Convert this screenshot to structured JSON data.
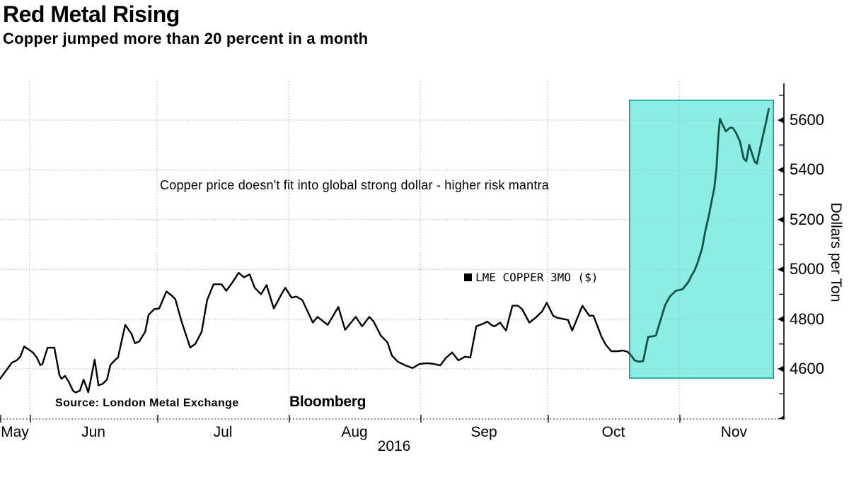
{
  "header": {
    "title": "Red Metal Rising",
    "subtitle": "Copper jumped more than 20 percent in a month"
  },
  "annotation": "Copper price doesn't fit into global strong dollar - higher risk mantra",
  "legend": {
    "marker": "black-square",
    "label": "LME COPPER 3MO ($)"
  },
  "footer": {
    "source": "Source:  London Metal Exchange",
    "brand": "Bloomberg"
  },
  "chart_data": {
    "type": "line",
    "title": "Red Metal Rising",
    "subtitle": "Copper jumped more than 20 percent in a month",
    "x_axis": {
      "start_date": "2016-05-25",
      "unit": "days-since-start",
      "year_label": "2016",
      "month_grid_days": [
        7,
        37,
        68,
        99,
        129,
        160
      ],
      "month_labels": [
        {
          "label": "May",
          "center_day": 3.5
        },
        {
          "label": "Jun",
          "center_day": 22.0
        },
        {
          "label": "Jul",
          "center_day": 52.5
        },
        {
          "label": "Aug",
          "center_day": 83.5
        },
        {
          "label": "Sep",
          "center_day": 114.0
        },
        {
          "label": "Oct",
          "center_day": 144.5
        },
        {
          "label": "Nov",
          "center_day": 172.9
        }
      ]
    },
    "y_axis": {
      "label": "Dollars per Ton",
      "ticks": [
        4600,
        4800,
        5000,
        5200,
        5400,
        5600
      ],
      "minor_ticks": [
        4500,
        4700,
        4900,
        5100,
        5300,
        5500,
        5700
      ],
      "range": [
        4390,
        5755
      ]
    },
    "grid_color": "#a9a9a9",
    "highlight": {
      "day_start": 148.3,
      "day_end": 182.2,
      "value_min": 4563,
      "value_max": 5680,
      "fill": "#63e6d8",
      "fill_opacity": 0.72,
      "border": "#0aa396"
    },
    "series": [
      {
        "name": "LME COPPER 3MO ($)",
        "color": "#000000",
        "highlight_color": "#11564b",
        "points": [
          [
            0,
            4560
          ],
          [
            1.3,
            4590
          ],
          [
            2.8,
            4625
          ],
          [
            4,
            4635
          ],
          [
            4.8,
            4650
          ],
          [
            5.7,
            4690
          ],
          [
            7,
            4675
          ],
          [
            7.8,
            4665
          ],
          [
            8.7,
            4645
          ],
          [
            9.5,
            4615
          ],
          [
            10,
            4620
          ],
          [
            11.2,
            4685
          ],
          [
            12.8,
            4685
          ],
          [
            14,
            4575
          ],
          [
            14.5,
            4560
          ],
          [
            15.3,
            4572
          ],
          [
            16.2,
            4548
          ],
          [
            17.2,
            4512
          ],
          [
            17.8,
            4505
          ],
          [
            18.8,
            4512
          ],
          [
            19.7,
            4557
          ],
          [
            20.8,
            4506
          ],
          [
            22.3,
            4637
          ],
          [
            23.2,
            4534
          ],
          [
            24.2,
            4540
          ],
          [
            25.2,
            4557
          ],
          [
            26,
            4615
          ],
          [
            26.5,
            4625
          ],
          [
            27.2,
            4637
          ],
          [
            27.8,
            4646
          ],
          [
            29.5,
            4777
          ],
          [
            31,
            4740
          ],
          [
            31.8,
            4703
          ],
          [
            32.8,
            4710
          ],
          [
            34.2,
            4749
          ],
          [
            35,
            4817
          ],
          [
            36.3,
            4840
          ],
          [
            37.5,
            4843
          ],
          [
            39.2,
            4911
          ],
          [
            40.5,
            4894
          ],
          [
            41.3,
            4880
          ],
          [
            42.8,
            4789
          ],
          [
            44.8,
            4686
          ],
          [
            46,
            4700
          ],
          [
            47.5,
            4749
          ],
          [
            48.8,
            4877
          ],
          [
            50.3,
            4940
          ],
          [
            52.2,
            4940
          ],
          [
            53.3,
            4914
          ],
          [
            54.7,
            4946
          ],
          [
            56.2,
            4986
          ],
          [
            57.5,
            4968
          ],
          [
            58.8,
            4980
          ],
          [
            60,
            4926
          ],
          [
            61.5,
            4900
          ],
          [
            62.8,
            4937
          ],
          [
            64.5,
            4843
          ],
          [
            66.3,
            4900
          ],
          [
            67.2,
            4926
          ],
          [
            68.7,
            4886
          ],
          [
            69.8,
            4891
          ],
          [
            71.2,
            4877
          ],
          [
            73.7,
            4786
          ],
          [
            74.8,
            4809
          ],
          [
            77.2,
            4777
          ],
          [
            79.7,
            4849
          ],
          [
            81.3,
            4757
          ],
          [
            83.8,
            4809
          ],
          [
            85.3,
            4771
          ],
          [
            87,
            4809
          ],
          [
            88,
            4791
          ],
          [
            89.7,
            4734
          ],
          [
            91.3,
            4706
          ],
          [
            92.3,
            4654
          ],
          [
            93.7,
            4629
          ],
          [
            95.5,
            4614
          ],
          [
            97.2,
            4603
          ],
          [
            98.8,
            4620
          ],
          [
            100.7,
            4623
          ],
          [
            102.2,
            4620
          ],
          [
            103.7,
            4614
          ],
          [
            105,
            4643
          ],
          [
            106.5,
            4666
          ],
          [
            108,
            4634
          ],
          [
            109.5,
            4649
          ],
          [
            110.8,
            4646
          ],
          [
            112.2,
            4771
          ],
          [
            114,
            4783
          ],
          [
            114.8,
            4790
          ],
          [
            115.7,
            4777
          ],
          [
            116.5,
            4771
          ],
          [
            117.8,
            4786
          ],
          [
            119.2,
            4754
          ],
          [
            120.7,
            4854
          ],
          [
            122,
            4854
          ],
          [
            123,
            4840
          ],
          [
            124.7,
            4786
          ],
          [
            126.2,
            4806
          ],
          [
            127.7,
            4831
          ],
          [
            128.8,
            4866
          ],
          [
            130.3,
            4814
          ],
          [
            131.2,
            4806
          ],
          [
            132.8,
            4800
          ],
          [
            133.8,
            4797
          ],
          [
            134.8,
            4754
          ],
          [
            137.2,
            4854
          ],
          [
            138.8,
            4814
          ],
          [
            139.8,
            4814
          ],
          [
            141.7,
            4729
          ],
          [
            142.7,
            4697
          ],
          [
            144,
            4671
          ],
          [
            145.5,
            4671
          ],
          [
            146.7,
            4674
          ],
          [
            147.8,
            4669
          ],
          [
            148.7,
            4654
          ],
          [
            149.5,
            4634
          ],
          [
            150.5,
            4629
          ],
          [
            151.5,
            4631
          ],
          [
            152.7,
            4729
          ],
          [
            153.8,
            4731
          ],
          [
            154.5,
            4734
          ],
          [
            156.7,
            4857
          ],
          [
            157.8,
            4891
          ],
          [
            159.2,
            4914
          ],
          [
            160.8,
            4920
          ],
          [
            162.2,
            4950
          ],
          [
            162.9,
            4975
          ],
          [
            163.6,
            4995
          ],
          [
            164.3,
            5025
          ],
          [
            165.4,
            5085
          ],
          [
            166.1,
            5150
          ],
          [
            166.9,
            5210
          ],
          [
            167.6,
            5270
          ],
          [
            168.3,
            5330
          ],
          [
            168.8,
            5410
          ],
          [
            169.2,
            5530
          ],
          [
            169.6,
            5605
          ],
          [
            170.4,
            5575
          ],
          [
            171,
            5555
          ],
          [
            172,
            5570
          ],
          [
            172.7,
            5568
          ],
          [
            173.5,
            5545
          ],
          [
            174.3,
            5515
          ],
          [
            175.2,
            5445
          ],
          [
            175.8,
            5435
          ],
          [
            176.5,
            5500
          ],
          [
            177.8,
            5432
          ],
          [
            178.3,
            5425
          ],
          [
            179.5,
            5520
          ],
          [
            180.5,
            5595
          ],
          [
            181.1,
            5645
          ]
        ]
      }
    ]
  }
}
